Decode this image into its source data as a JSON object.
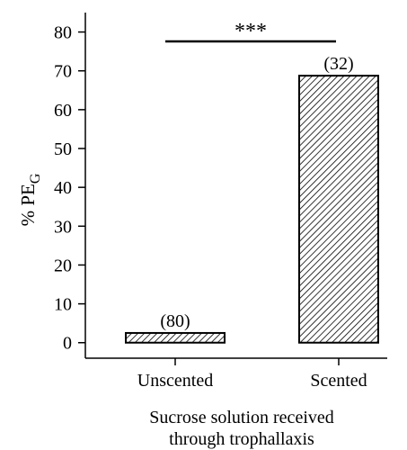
{
  "chart_data": {
    "type": "bar",
    "categories": [
      "Unscented",
      "Scented"
    ],
    "values": [
      2.5,
      68.75
    ],
    "sample_sizes": [
      "(80)",
      "(32)"
    ],
    "ylabel_main": "% PE",
    "ylabel_sub": "G",
    "xlabel_line1": "Sucrose solution received",
    "xlabel_line2": "through trophallaxis",
    "ylim": [
      -4,
      85
    ],
    "yticks": [
      0,
      10,
      20,
      30,
      40,
      50,
      60,
      70,
      80
    ],
    "significance": "***",
    "bar_fill": "hatched",
    "grid": false
  }
}
